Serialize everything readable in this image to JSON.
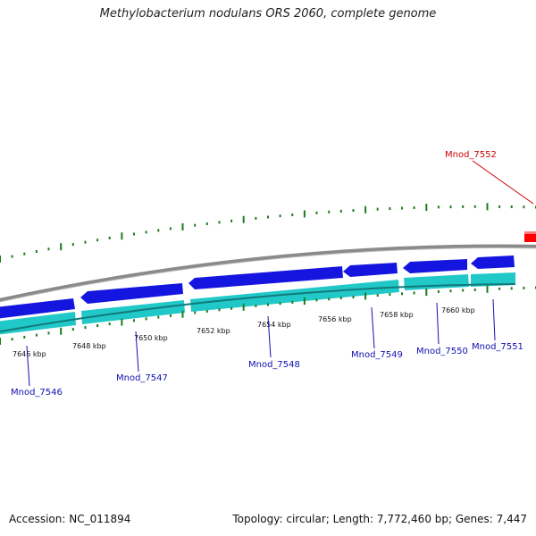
{
  "title": "Methylobacterium nodulans ORS 2060, complete genome",
  "accession": "Accession: NC_011894",
  "stats": "Topology: circular; Length: 7,772,460 bp; Genes: 7,447",
  "colors": {
    "cds_forward": "#1515e0",
    "cds_reverse_track": "#20c8c8",
    "backbone": "#8a8a8a",
    "tick": "#1e7a1e",
    "label_blue": "#1010b0",
    "label_red": "#cc0000",
    "highlight_gene": "#ff0000"
  },
  "ruler_labels": [
    "7646 kbp",
    "7648 kbp",
    "7650 kbp",
    "7652 kbp",
    "7654 kbp",
    "7656 kbp",
    "7658 kbp",
    "7660 kbp"
  ],
  "gene_labels": [
    "Mnod_7546",
    "Mnod_7547",
    "Mnod_7548",
    "Mnod_7549",
    "Mnod_7550",
    "Mnod_7551"
  ],
  "highlight_label": "Mnod_7552"
}
